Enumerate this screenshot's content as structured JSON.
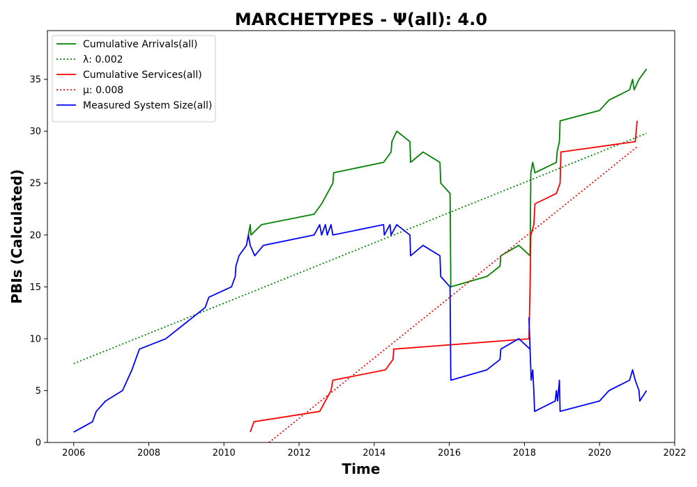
{
  "chart_data": {
    "type": "line",
    "title": "MARCHETYPES -  Ψ(all): 4.0",
    "xlabel": "Time",
    "ylabel": "PBIs (Calculated)",
    "xlim": [
      2005.3,
      2022.0
    ],
    "ylim": [
      0,
      39.7
    ],
    "x_ticks": [
      2006,
      2008,
      2010,
      2012,
      2014,
      2016,
      2018,
      2020,
      2022
    ],
    "y_ticks": [
      0,
      5,
      10,
      15,
      20,
      25,
      30,
      35
    ],
    "grid": false,
    "legend_position": "top-left",
    "series": [
      {
        "name": "Cumulative Arrivals(all)",
        "color": "#008000",
        "style": "solid",
        "points": [
          [
            2010.65,
            20
          ],
          [
            2010.7,
            21
          ],
          [
            2010.72,
            20
          ],
          [
            2011.0,
            21
          ],
          [
            2012.4,
            22
          ],
          [
            2012.6,
            23
          ],
          [
            2012.9,
            25
          ],
          [
            2012.92,
            26
          ],
          [
            2014.25,
            27
          ],
          [
            2014.45,
            28
          ],
          [
            2014.47,
            29
          ],
          [
            2014.6,
            30
          ],
          [
            2014.95,
            29
          ],
          [
            2014.97,
            27
          ],
          [
            2015.3,
            28
          ],
          [
            2015.75,
            27
          ],
          [
            2015.77,
            25
          ],
          [
            2016.02,
            24
          ],
          [
            2016.04,
            15
          ],
          [
            2017.0,
            16
          ],
          [
            2017.35,
            17
          ],
          [
            2017.37,
            18
          ],
          [
            2017.85,
            19
          ],
          [
            2018.15,
            18
          ],
          [
            2018.17,
            26
          ],
          [
            2018.22,
            27
          ],
          [
            2018.28,
            26
          ],
          [
            2018.85,
            27
          ],
          [
            2018.87,
            28
          ],
          [
            2018.93,
            29
          ],
          [
            2018.95,
            31
          ],
          [
            2020.0,
            32
          ],
          [
            2020.25,
            33
          ],
          [
            2020.8,
            34
          ],
          [
            2020.88,
            35
          ],
          [
            2020.92,
            34
          ],
          [
            2021.05,
            35
          ],
          [
            2021.25,
            36
          ]
        ]
      },
      {
        "name": "λ: 0.002",
        "color": "#008000",
        "style": "dotted",
        "points": [
          [
            2006.0,
            7.6
          ],
          [
            2021.25,
            29.8
          ]
        ]
      },
      {
        "name": "Cumulative Services(all)",
        "color": "#ff0000",
        "style": "solid",
        "points": [
          [
            2010.7,
            1
          ],
          [
            2010.8,
            2
          ],
          [
            2012.55,
            3
          ],
          [
            2012.85,
            5
          ],
          [
            2012.9,
            6
          ],
          [
            2014.3,
            7
          ],
          [
            2014.5,
            8
          ],
          [
            2014.52,
            9
          ],
          [
            2018.15,
            10
          ],
          [
            2018.12,
            10
          ],
          [
            2018.15,
            15
          ],
          [
            2018.17,
            20
          ],
          [
            2018.25,
            21
          ],
          [
            2018.28,
            23
          ],
          [
            2018.85,
            24
          ],
          [
            2018.95,
            25
          ],
          [
            2018.97,
            28
          ],
          [
            2020.95,
            29
          ],
          [
            2021.0,
            31
          ]
        ]
      },
      {
        "name": "μ: 0.008",
        "color": "#ff0000",
        "style": "dotted",
        "points": [
          [
            2011.2,
            0
          ],
          [
            2021.0,
            28.5
          ]
        ]
      },
      {
        "name": "Measured System Size(all)",
        "color": "#0000ff",
        "style": "solid",
        "points": [
          [
            2006.0,
            1
          ],
          [
            2006.5,
            2
          ],
          [
            2006.6,
            3
          ],
          [
            2006.85,
            4
          ],
          [
            2007.3,
            5
          ],
          [
            2007.55,
            7
          ],
          [
            2007.75,
            9
          ],
          [
            2008.45,
            10
          ],
          [
            2009.5,
            13
          ],
          [
            2009.6,
            14
          ],
          [
            2010.2,
            15
          ],
          [
            2010.3,
            16
          ],
          [
            2010.32,
            17
          ],
          [
            2010.4,
            18
          ],
          [
            2010.6,
            19
          ],
          [
            2010.65,
            20
          ],
          [
            2010.7,
            19
          ],
          [
            2010.82,
            18
          ],
          [
            2011.05,
            19
          ],
          [
            2012.4,
            20
          ],
          [
            2012.55,
            21
          ],
          [
            2012.6,
            20
          ],
          [
            2012.7,
            21
          ],
          [
            2012.75,
            20
          ],
          [
            2012.85,
            21
          ],
          [
            2012.9,
            20
          ],
          [
            2014.25,
            21
          ],
          [
            2014.27,
            20
          ],
          [
            2014.42,
            21
          ],
          [
            2014.45,
            20
          ],
          [
            2014.6,
            21
          ],
          [
            2014.95,
            20
          ],
          [
            2014.97,
            18
          ],
          [
            2015.3,
            19
          ],
          [
            2015.75,
            18
          ],
          [
            2015.77,
            16
          ],
          [
            2016.02,
            15
          ],
          [
            2016.04,
            6
          ],
          [
            2017.0,
            7
          ],
          [
            2017.35,
            8
          ],
          [
            2017.37,
            9
          ],
          [
            2017.85,
            10
          ],
          [
            2018.15,
            9
          ],
          [
            2018.12,
            12
          ],
          [
            2018.18,
            6
          ],
          [
            2018.22,
            7
          ],
          [
            2018.25,
            5
          ],
          [
            2018.27,
            3
          ],
          [
            2018.82,
            4
          ],
          [
            2018.85,
            5
          ],
          [
            2018.88,
            4
          ],
          [
            2018.93,
            6
          ],
          [
            2018.95,
            3
          ],
          [
            2020.0,
            4
          ],
          [
            2020.25,
            5
          ],
          [
            2020.8,
            6
          ],
          [
            2020.88,
            7
          ],
          [
            2020.95,
            6
          ],
          [
            2021.05,
            5
          ],
          [
            2021.07,
            4
          ],
          [
            2021.25,
            5
          ]
        ]
      }
    ]
  },
  "legend": {
    "items": [
      {
        "label": "Cumulative Arrivals(all)",
        "color": "#008000",
        "style": "solid"
      },
      {
        "label": "λ: 0.002",
        "color": "#008000",
        "style": "dotted"
      },
      {
        "label": "Cumulative Services(all)",
        "color": "#ff0000",
        "style": "solid"
      },
      {
        "label": "μ: 0.008",
        "color": "#ff0000",
        "style": "dotted"
      },
      {
        "label": "Measured System Size(all)",
        "color": "#0000ff",
        "style": "solid"
      }
    ]
  }
}
